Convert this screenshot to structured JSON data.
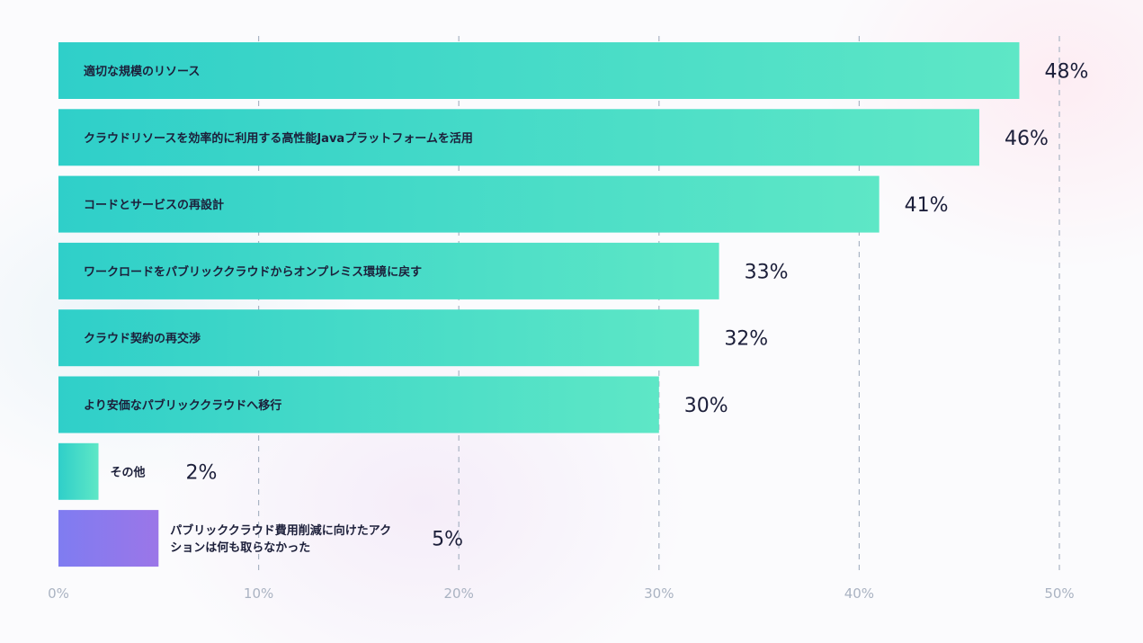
{
  "chart_data": {
    "type": "bar",
    "orientation": "horizontal",
    "categories": [
      "適切な規模のリソース",
      "クラウドリソースを効率的に利用する高性能Javaプラットフォームを活用",
      "コードとサービスの再設計",
      "ワークロードをパブリッククラウドからオンプレミス環境に戻す",
      "クラウド契約の再交渉",
      "より安価なパブリッククラウドへ移行",
      "その他",
      [
        "パブリッククラウド費用削減に向けたアク",
        "ションは何も取らなかった"
      ]
    ],
    "values": [
      48,
      46,
      41,
      33,
      32,
      30,
      2,
      5
    ],
    "value_labels": [
      "48%",
      "46%",
      "41%",
      "33%",
      "32%",
      "30%",
      "2%",
      "5%"
    ],
    "bar_colors": [
      "teal",
      "teal",
      "teal",
      "teal",
      "teal",
      "teal",
      "teal",
      "purple"
    ],
    "colors": {
      "teal_start": "#2fcfc9",
      "teal_end": "#5ee7c6",
      "purple_start": "#7f7cf1",
      "purple_end": "#9b76e8",
      "text": "#1c1f3a",
      "tick": "#aab3c2",
      "grid": "#a9b4c4"
    },
    "xlim": [
      0,
      50
    ],
    "xticks": [
      0,
      10,
      20,
      30,
      40,
      50
    ],
    "xtick_labels": [
      "0%",
      "10%",
      "20%",
      "30%",
      "40%",
      "50%"
    ],
    "grid": "vertical dashed",
    "legend": "none"
  }
}
